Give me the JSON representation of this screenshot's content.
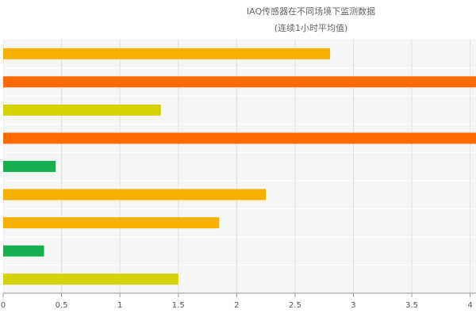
{
  "chart_data": {
    "type": "hbar",
    "title": "IAQ传感器在不同场境下监测数据",
    "subtitle": "(连续1小时平均值)",
    "categories": [
      null,
      null,
      null,
      null,
      null,
      null,
      null,
      null,
      null
    ],
    "values": [
      2.8,
      4.2,
      1.35,
      4.2,
      0.45,
      2.25,
      1.85,
      0.35,
      1.5
    ],
    "colors": [
      "#f5b000",
      "#ff6a00",
      "#d6d200",
      "#ff6a00",
      "#16b050",
      "#f5b000",
      "#f5b000",
      "#16b050",
      "#d6d200"
    ],
    "xlim": [
      0,
      4.05
    ],
    "xticks": [
      0,
      0.5,
      1,
      1.5,
      2,
      2.5,
      3,
      3.5,
      4
    ],
    "grid": true
  }
}
